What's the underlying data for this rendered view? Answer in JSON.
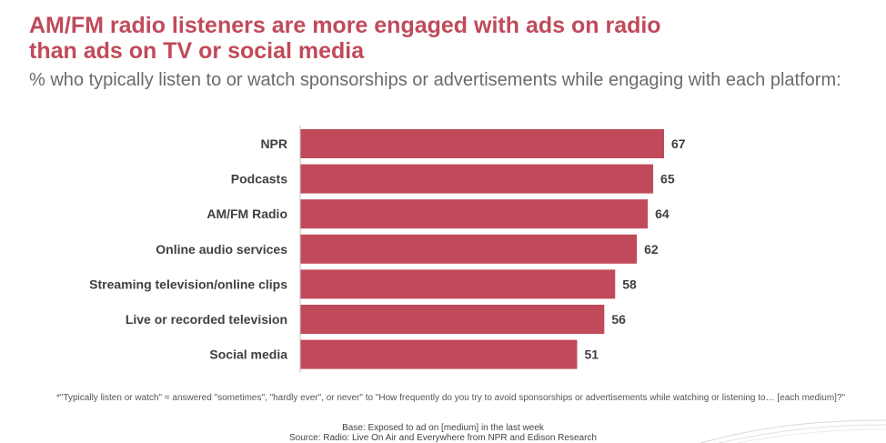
{
  "header": {
    "title_line1": "AM/FM radio listeners are more engaged with ads on radio",
    "title_line2": "than ads on TV or social media",
    "subtitle": "% who typically listen to or watch sponsorships or advertisements while engaging with each platform:"
  },
  "chart_data": {
    "type": "bar",
    "orientation": "horizontal",
    "categories": [
      "NPR",
      "Podcasts",
      "AM/FM Radio",
      "Online audio services",
      "Streaming television/online clips",
      "Live or recorded television",
      "Social media"
    ],
    "values": [
      67,
      65,
      64,
      62,
      58,
      56,
      51
    ],
    "xlim": [
      0,
      67
    ],
    "grid": false,
    "legend": "none",
    "bar_color": "#c04a5a"
  },
  "footer": {
    "footnote": "*\"Typically listen or watch\" = answered \"sometimes\", \"hardly ever\", or never\" to \"How frequently do you try to avoid sponsorships or advertisements while watching or listening to… [each medium]?\"",
    "base": "Base: Exposed to ad on [medium] in the last week",
    "source": "Source: Radio: Live On Air and Everywhere from NPR and Edison Research"
  },
  "colors": {
    "accent": "#c04a5a",
    "subtitle": "#6b6b6b"
  }
}
